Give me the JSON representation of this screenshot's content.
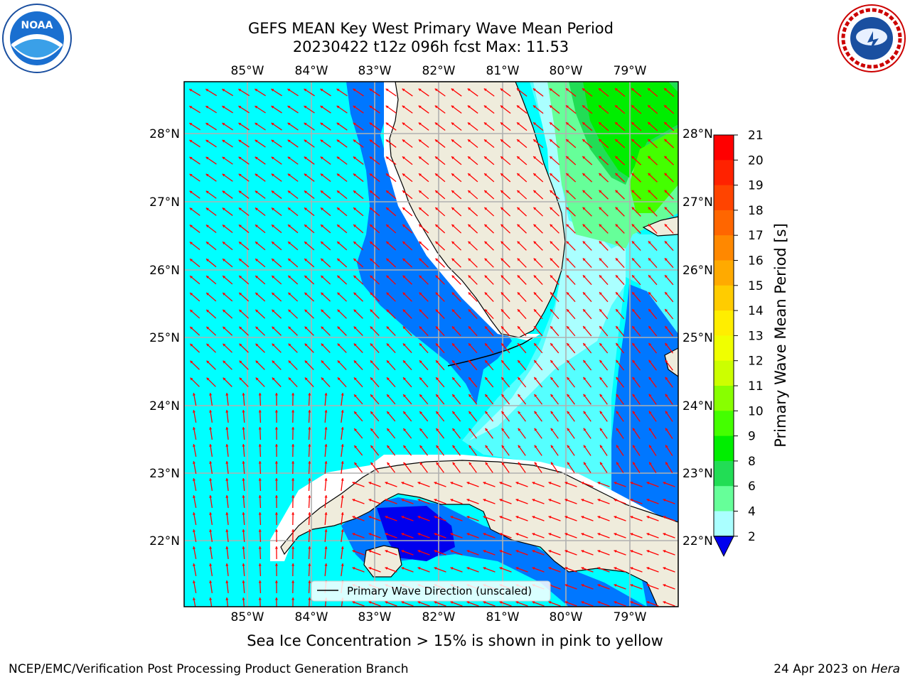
{
  "title_line1": "GEFS MEAN Key West Primary Wave Mean Period",
  "title_line2": "20230422 t12z 096h fcst   Max: 11.53",
  "ice_note": "Sea Ice Concentration > 15% is shown in pink to yellow",
  "credit": "NCEP/EMC/Verification Post Processing Product Generation Branch",
  "date": "24 Apr 2023 on",
  "machine": "Hera",
  "legend_label": "Primary Wave Direction (unscaled)",
  "colorbar_label": "Primary Wave Mean Period [s]",
  "logos": {
    "left": "noaa-logo",
    "right": "nws-logo"
  },
  "lon_ticks": [
    "85°W",
    "84°W",
    "83°W",
    "82°W",
    "81°W",
    "80°W",
    "79°W"
  ],
  "lat_ticks": [
    "28°N",
    "27°N",
    "26°N",
    "25°N",
    "24°N",
    "23°N",
    "22°N"
  ],
  "colorbar_ticks": [
    "21",
    "20",
    "19",
    "18",
    "17",
    "16",
    "15",
    "14",
    "13",
    "12",
    "11",
    "10",
    "9",
    "8",
    "6",
    "4",
    "2"
  ],
  "colorbar_colors": [
    "#ff0000",
    "#ff2200",
    "#ff4400",
    "#ff6600",
    "#ff8800",
    "#ffaa00",
    "#ffcc00",
    "#ffee00",
    "#f0ff00",
    "#ccff00",
    "#88ff00",
    "#44ff00",
    "#00ee00",
    "#22dd55",
    "#66ff99",
    "#aaffff",
    "#55ffff",
    "#00ffff",
    "#0077ff"
  ],
  "colors": {
    "land": "#efecdc",
    "arrow": "#ff0000",
    "grid": "#b0b0b0"
  }
}
